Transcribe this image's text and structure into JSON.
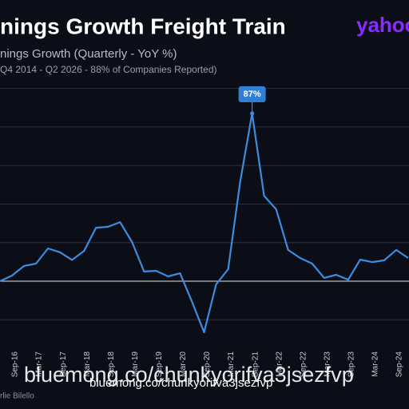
{
  "chart_data": {
    "type": "line",
    "title": "nings Growth Freight Train",
    "logo": "yahoo",
    "subtitle": "nings Growth (Quarterly - YoY %)",
    "note": "Q4 2014 - Q2 2026 - 88% of Companies Reported)",
    "source": "rlie Bilello",
    "watermark": "bluemong.co/chunkyorifva3jsezfvp",
    "categories": [
      null,
      "Sep-16",
      null,
      "Mar-17",
      null,
      "Sep-17",
      null,
      "Mar-18",
      null,
      "Sep-18",
      null,
      "Mar-19",
      null,
      "Sep-19",
      null,
      "Mar-20",
      null,
      "Sep-20",
      null,
      "Mar-21",
      null,
      "Sep-21",
      null,
      "Mar-22",
      null,
      "Sep-22",
      null,
      "Mar-23",
      null,
      "Sep-23",
      null,
      "Mar-24",
      null,
      "Sep-24",
      null
    ],
    "values": [
      0,
      2.9,
      7.9,
      9.1,
      17,
      15,
      11,
      15.7,
      27.7,
      28.2,
      30.6,
      20.3,
      5,
      5.4,
      2.5,
      4.1,
      -10.8,
      -26.5,
      -1.7,
      6.2,
      51.4,
      87,
      44.3,
      37.3,
      16.2,
      12,
      9.1,
      1.7,
      3.3,
      0.8,
      11.2,
      9.9,
      10.8,
      16.2,
      12
    ],
    "value_labels": [
      null,
      null,
      null,
      null,
      null,
      null,
      null,
      null,
      null,
      null,
      null,
      null,
      null,
      null,
      null,
      null,
      null,
      null,
      null,
      null,
      null,
      "87%",
      null,
      null,
      null,
      null,
      null,
      null,
      null,
      null,
      null,
      null,
      null,
      null,
      null
    ],
    "color": "#3b8de0",
    "ylim": [
      -40,
      110
    ],
    "yticks": [
      -20,
      0,
      20,
      40,
      60,
      80,
      100
    ],
    "grid": true
  }
}
